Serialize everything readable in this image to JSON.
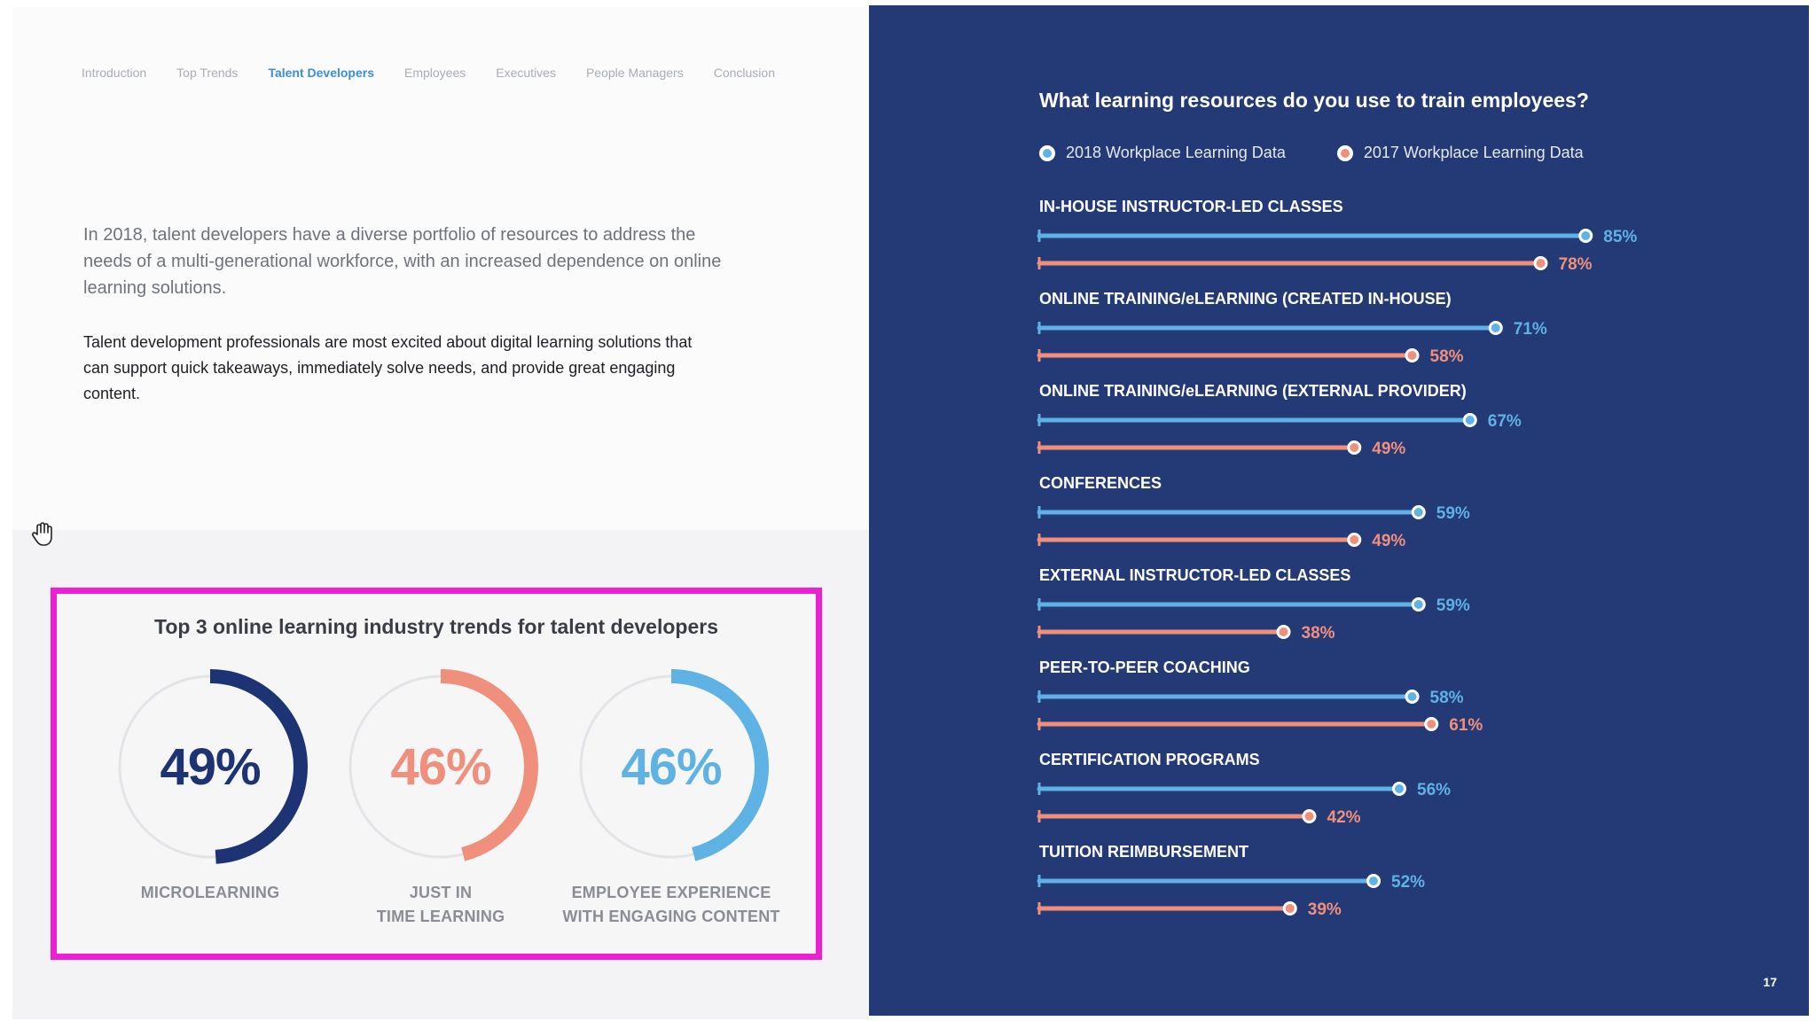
{
  "nav": {
    "items": [
      "Introduction",
      "Top Trends",
      "Talent Developers",
      "Employees",
      "Executives",
      "People Managers",
      "Conclusion"
    ],
    "active_index": 2
  },
  "intro": {
    "paragraph": "In 2018, talent developers have a diverse portfolio of resources to address the needs of a multi-generational workforce, with an increased dependence on online learning solutions.",
    "excitement": "Talent development professionals are most excited about digital learning solutions that can support quick takeaways, immediately solve needs, and provide great engaging content."
  },
  "cursor_icon": "hand-cursor-icon",
  "trends": {
    "title": "Top 3 online learning industry trends for talent developers",
    "items": [
      {
        "value": "49%",
        "fraction": 0.49,
        "label_line1": "MICROLEARNING",
        "label_line2": "",
        "color": "#1d3374"
      },
      {
        "value": "46%",
        "fraction": 0.46,
        "label_line1": "JUST IN",
        "label_line2": "TIME LEARNING",
        "color": "#f0907c"
      },
      {
        "value": "46%",
        "fraction": 0.46,
        "label_line1": "EMPLOYEE EXPERIENCE",
        "label_line2": "WITH ENGAGING CONTENT",
        "color": "#5eb2e4"
      }
    ],
    "track_color": "#e3e4e8",
    "highlight_border_color": "#ef1fd4"
  },
  "right_panel": {
    "background_color": "#233a76",
    "page_number": "17"
  },
  "chart_data": {
    "type": "bar",
    "orientation": "horizontal",
    "title": "What learning resources do you use to train employees?",
    "xlabel": "",
    "ylabel": "",
    "xlim": [
      0,
      100
    ],
    "grid": false,
    "legend_position": "top-left",
    "categories": [
      "IN-HOUSE INSTRUCTOR-LED CLASSES",
      "ONLINE TRAINING/eLEARNING (CREATED IN-HOUSE)",
      "ONLINE TRAINING/eLEARNING (EXTERNAL PROVIDER)",
      "CONFERENCES",
      "EXTERNAL INSTRUCTOR-LED CLASSES",
      "PEER-TO-PEER COACHING",
      "CERTIFICATION PROGRAMS",
      "TUITION REIMBURSEMENT"
    ],
    "series": [
      {
        "name": "2018 Workplace Learning Data",
        "color": "#5eb2e4",
        "values": [
          85,
          71,
          67,
          59,
          59,
          58,
          56,
          52
        ],
        "labels": [
          "85%",
          "71%",
          "67%",
          "59%",
          "59%",
          "58%",
          "56%",
          "52%"
        ]
      },
      {
        "name": "2017 Workplace Learning Data",
        "color": "#f0907c",
        "values": [
          78,
          58,
          49,
          49,
          38,
          61,
          42,
          39
        ],
        "labels": [
          "78%",
          "58%",
          "49%",
          "49%",
          "38%",
          "61%",
          "42%",
          "39%"
        ]
      }
    ]
  }
}
